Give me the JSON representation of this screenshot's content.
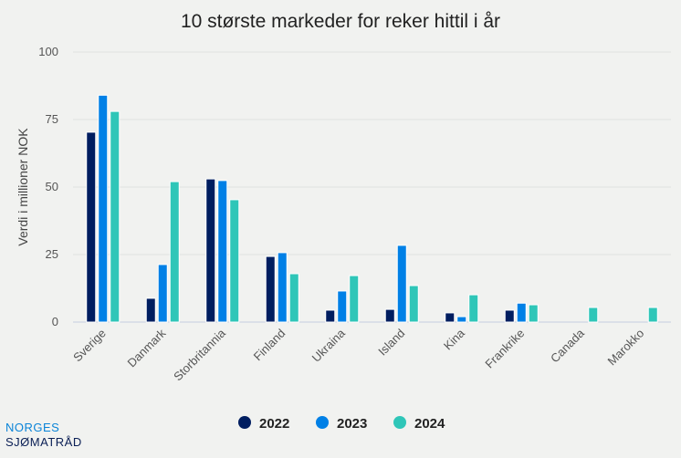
{
  "chart_data": {
    "type": "bar",
    "title": "10 største markeder for reker hittil i år",
    "xlabel": "",
    "ylabel": "Verdi i millioner NOK",
    "ylim": [
      0,
      100
    ],
    "yticks": [
      "0",
      "25",
      "50",
      "75",
      "100"
    ],
    "grid": true,
    "legend_position": "bottom",
    "categories": [
      "Sverige",
      "Danmark",
      "Storbritannia",
      "Finland",
      "Ukraina",
      "Island",
      "Kina",
      "Frankrike",
      "Canada",
      "Marokko"
    ],
    "series": [
      {
        "name": "2022",
        "color": "#001e60",
        "values": [
          70.3,
          8.8,
          53.0,
          24.3,
          4.4,
          4.7,
          3.4,
          4.4,
          null,
          null
        ]
      },
      {
        "name": "2023",
        "color": "#0080e6",
        "values": [
          84.0,
          21.3,
          52.4,
          25.7,
          11.5,
          28.4,
          2.0,
          7.0,
          null,
          null
        ]
      },
      {
        "name": "2024",
        "color": "#2fc6b8",
        "values": [
          78.0,
          52.0,
          45.3,
          17.9,
          17.2,
          13.5,
          10.1,
          6.4,
          5.4,
          5.4
        ]
      }
    ]
  },
  "logo": {
    "line1": "NORGES",
    "line2": "SJØMATRÅD"
  }
}
